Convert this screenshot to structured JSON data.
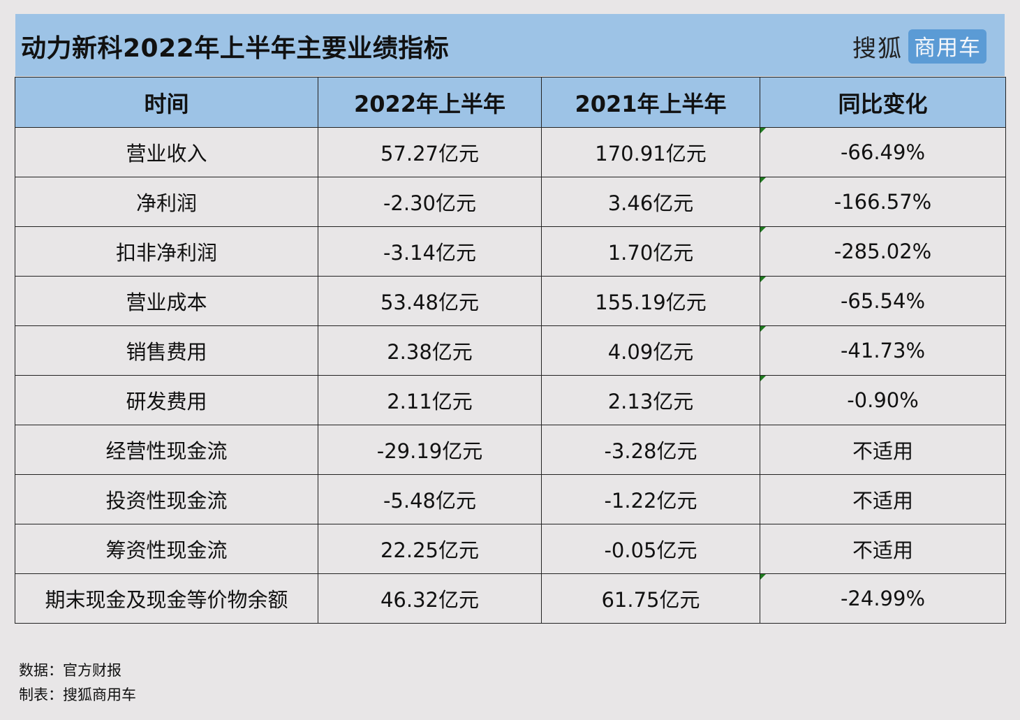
{
  "title": "动力新科2022年上半年主要业绩指标",
  "logo": {
    "main": "搜狐",
    "badge": "商用车"
  },
  "headers": [
    "时间",
    "2022年上半年",
    "2021年上半年",
    "同比变化"
  ],
  "rows": [
    {
      "item": "营业收入",
      "h1_2022": "57.27亿元",
      "h1_2021": "170.91亿元",
      "yoy": "-66.49%"
    },
    {
      "item": "净利润",
      "h1_2022": "-2.30亿元",
      "h1_2021": "3.46亿元",
      "yoy": "-166.57%"
    },
    {
      "item": "扣非净利润",
      "h1_2022": "-3.14亿元",
      "h1_2021": "1.70亿元",
      "yoy": "-285.02%"
    },
    {
      "item": "营业成本",
      "h1_2022": "53.48亿元",
      "h1_2021": "155.19亿元",
      "yoy": "-65.54%"
    },
    {
      "item": "销售费用",
      "h1_2022": "2.38亿元",
      "h1_2021": "4.09亿元",
      "yoy": "-41.73%"
    },
    {
      "item": "研发费用",
      "h1_2022": "2.11亿元",
      "h1_2021": "2.13亿元",
      "yoy": "-0.90%"
    },
    {
      "item": "经营性现金流",
      "h1_2022": "-29.19亿元",
      "h1_2021": "-3.28亿元",
      "yoy": "不适用"
    },
    {
      "item": "投资性现金流",
      "h1_2022": "-5.48亿元",
      "h1_2021": "-1.22亿元",
      "yoy": "不适用"
    },
    {
      "item": "筹资性现金流",
      "h1_2022": "22.25亿元",
      "h1_2021": "-0.05亿元",
      "yoy": "不适用"
    },
    {
      "item": "期末现金及现金等价物余额",
      "h1_2022": "46.32亿元",
      "h1_2021": "61.75亿元",
      "yoy": "-24.99%"
    }
  ],
  "footer": {
    "source": "数据：官方财报",
    "maker": "制表：搜狐商用车"
  },
  "colors": {
    "header_bg": "#9dc3e6",
    "page_bg": "#e8e6e7",
    "logo_badge": "#5b9bd5",
    "cell_marker": "#1f7a1f"
  }
}
